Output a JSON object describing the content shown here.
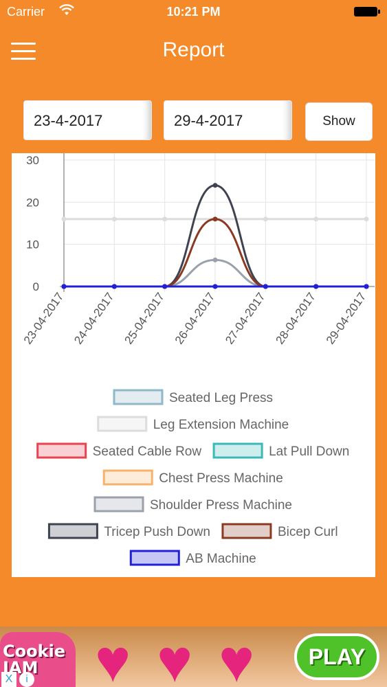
{
  "status_bar": {
    "carrier": "Carrier",
    "time": "10:21 PM"
  },
  "header": {
    "title": "Report"
  },
  "filters": {
    "from_date": "23-4-2017",
    "to_date": "29-4-2017",
    "show_label": "Show"
  },
  "chart_data": {
    "type": "line",
    "x": [
      "23-04-2017",
      "24-04-2017",
      "25-04-2017",
      "26-04-2017",
      "27-04-2017",
      "28-04-2017",
      "29-04-2017"
    ],
    "ylim": [
      0,
      30
    ],
    "yticks": [
      0,
      10,
      20,
      30
    ],
    "grid": true,
    "legend_position": "bottom",
    "series": [
      {
        "name": "Seated Leg Press",
        "color": "#8fb8c8",
        "values": [
          0,
          0,
          0,
          0,
          0,
          0,
          0
        ]
      },
      {
        "name": "Leg Extension Machine",
        "color": "#dcdcdc",
        "values": [
          16,
          16,
          16,
          16,
          16,
          16,
          16
        ]
      },
      {
        "name": "Seated Cable Row",
        "color": "#e8434e",
        "values": [
          0,
          0,
          0,
          0,
          0,
          0,
          0
        ]
      },
      {
        "name": "Lat Pull Down",
        "color": "#3cb8b8",
        "values": [
          0,
          0,
          0,
          0,
          0,
          0,
          0
        ]
      },
      {
        "name": "Chest Press Machine",
        "color": "#f6b36b",
        "values": [
          0,
          0,
          0,
          0,
          0,
          0,
          0
        ]
      },
      {
        "name": "Shoulder Press Machine",
        "color": "#9aa0ac",
        "values": [
          0,
          0,
          0,
          6.3,
          0,
          0,
          0
        ]
      },
      {
        "name": "Tricep Push Down",
        "color": "#3f4350",
        "values": [
          0,
          0,
          0,
          24,
          0,
          0,
          0
        ]
      },
      {
        "name": "Bicep Curl",
        "color": "#8b3a22",
        "values": [
          0,
          0,
          0,
          16,
          0,
          0,
          0
        ]
      },
      {
        "name": "AB Machine",
        "color": "#2020d8",
        "values": [
          0,
          0,
          0,
          0,
          0,
          0,
          0
        ]
      }
    ]
  },
  "ad": {
    "brand": "Cookie JAM",
    "play_label": "PLAY",
    "close_label": "X",
    "info_label": "i"
  }
}
